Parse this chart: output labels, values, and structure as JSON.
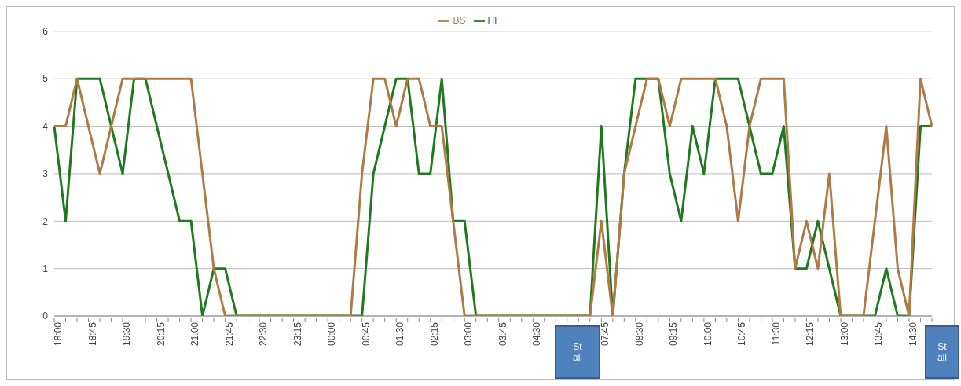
{
  "chart_data": {
    "type": "line",
    "categories": [
      "18:00",
      null,
      null,
      "18:45",
      null,
      null,
      "19:30",
      null,
      null,
      "20:15",
      null,
      null,
      "21:00",
      null,
      null,
      "21:45",
      null,
      null,
      "22:30",
      null,
      null,
      "23:15",
      null,
      null,
      "00:00",
      null,
      null,
      "00:45",
      null,
      null,
      "01:30",
      null,
      null,
      "02:15",
      null,
      null,
      "03:00",
      null,
      null,
      "03:45",
      null,
      null,
      "04:30",
      null,
      null,
      null,
      null,
      null,
      "07:45",
      null,
      null,
      "08:30",
      null,
      null,
      "09:15",
      null,
      null,
      "10:00",
      null,
      null,
      "10:45",
      null,
      null,
      "11:30",
      null,
      null,
      "12:15",
      null,
      null,
      "13:00",
      null,
      null,
      "13:45",
      null,
      null,
      "14:30",
      null,
      null
    ],
    "series": [
      {
        "name": "HF",
        "color": "#1e7a1e",
        "values": [
          4,
          2,
          5,
          5,
          5,
          4,
          3,
          5,
          5,
          4,
          3,
          2,
          2,
          0,
          1,
          1,
          0,
          0,
          0,
          0,
          0,
          0,
          0,
          0,
          0,
          0,
          0,
          0,
          3,
          4,
          5,
          5,
          3,
          3,
          5,
          2,
          2,
          0,
          0,
          0,
          0,
          0,
          0,
          0,
          0,
          0,
          0,
          0,
          4,
          0,
          3,
          5,
          5,
          5,
          3,
          2,
          4,
          3,
          5,
          5,
          5,
          4,
          3,
          3,
          4,
          1,
          1,
          2,
          1,
          0,
          0,
          0,
          0,
          1,
          0,
          0,
          4,
          4
        ]
      },
      {
        "name": "BS",
        "color": "#b07a45",
        "values": [
          4,
          4,
          5,
          4,
          3,
          4,
          5,
          5,
          5,
          5,
          5,
          5,
          5,
          3,
          1,
          0,
          0,
          0,
          0,
          0,
          0,
          0,
          0,
          0,
          0,
          0,
          0,
          3,
          5,
          5,
          4,
          5,
          5,
          4,
          4,
          2,
          0,
          0,
          0,
          0,
          0,
          0,
          0,
          0,
          0,
          0,
          0,
          0,
          2,
          0,
          3,
          4,
          5,
          5,
          4,
          5,
          5,
          5,
          5,
          4,
          2,
          4,
          5,
          5,
          5,
          1,
          2,
          1,
          3,
          0,
          0,
          0,
          2,
          4,
          1,
          0,
          5,
          4
        ]
      }
    ],
    "ylim": [
      0,
      6
    ],
    "yticks": [
      0,
      1,
      2,
      3,
      4,
      5,
      6
    ],
    "grid": "y",
    "legend": "top",
    "marker": "none",
    "line_style": "solid",
    "annotations": [
      "St all",
      "St all"
    ]
  }
}
